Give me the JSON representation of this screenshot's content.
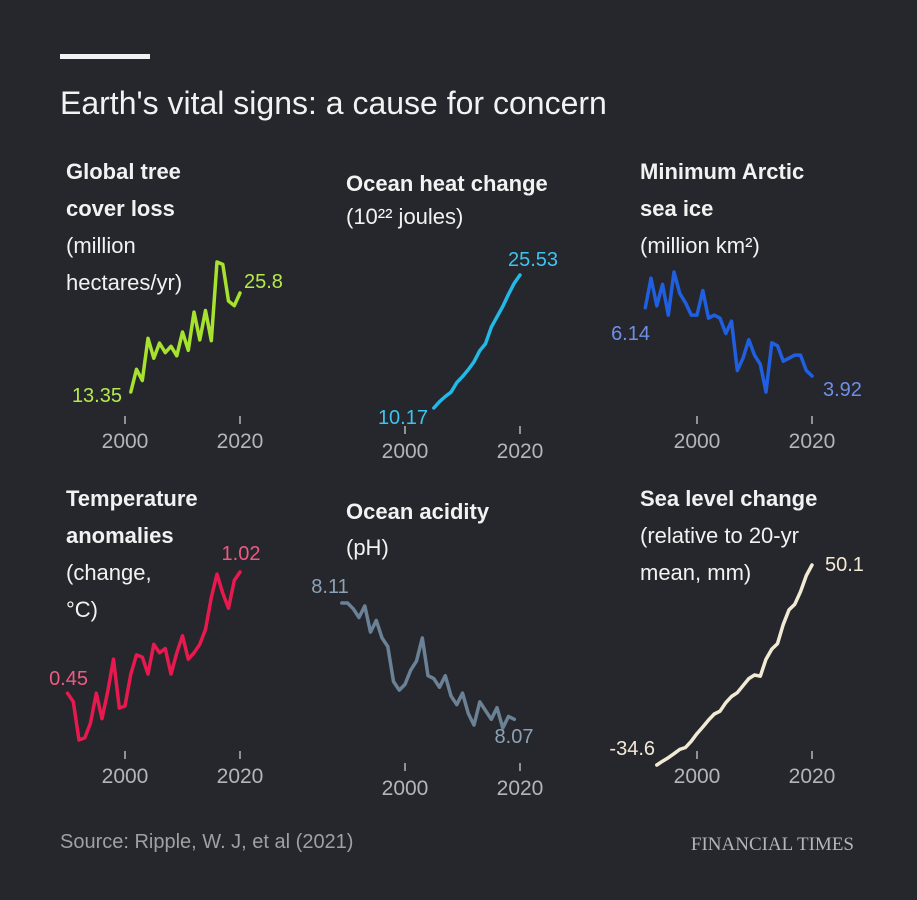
{
  "title": "Earth's vital signs: a cause for concern",
  "source": "Source: Ripple, W. J, et al (2021)",
  "publisher": "FINANCIAL TIMES",
  "chart_data": [
    {
      "type": "line",
      "title": [
        "Global tree",
        "cover loss"
      ],
      "subtitle": [
        "(million",
        "hectares/yr)"
      ],
      "color": "#a6e22e",
      "x": [
        2001,
        2002,
        2003,
        2004,
        2005,
        2006,
        2007,
        2008,
        2009,
        2010,
        2011,
        2012,
        2013,
        2014,
        2015,
        2016,
        2017,
        2018,
        2019,
        2020
      ],
      "values": [
        13.35,
        16.2,
        14.8,
        20.1,
        17.6,
        19.5,
        18.3,
        19.1,
        17.9,
        20.9,
        18.6,
        23.4,
        19.9,
        23.6,
        19.8,
        29.7,
        29.4,
        24.8,
        24.2,
        25.8
      ],
      "xlim": [
        1990,
        2025
      ],
      "xticks": [
        2000,
        2020
      ]
    },
    {
      "type": "line",
      "title": [
        "Ocean heat change"
      ],
      "subtitle": [
        "(10²² joules)"
      ],
      "color": "#22b8e8",
      "x": [
        2005,
        2006,
        2007,
        2008,
        2009,
        2010,
        2011,
        2012,
        2013,
        2014,
        2015,
        2016,
        2017,
        2018,
        2019,
        2020
      ],
      "values": [
        10.17,
        10.9,
        11.5,
        12.0,
        13.1,
        13.8,
        14.6,
        15.5,
        16.8,
        17.6,
        19.5,
        20.7,
        21.9,
        23.3,
        24.6,
        25.53
      ],
      "xlim": [
        1990,
        2025
      ],
      "xticks": [
        2000,
        2020
      ]
    },
    {
      "type": "line",
      "title": [
        "Minimum Arctic",
        "sea ice"
      ],
      "subtitle": [
        "(million km²)"
      ],
      "color": "#1f5fe0",
      "x": [
        1991,
        1992,
        1993,
        1994,
        1995,
        1996,
        1997,
        1998,
        1999,
        2000,
        2001,
        2002,
        2003,
        2004,
        2005,
        2006,
        2007,
        2008,
        2009,
        2010,
        2011,
        2012,
        2013,
        2014,
        2015,
        2016,
        2017,
        2018,
        2019,
        2020
      ],
      "values": [
        6.14,
        7.1,
        6.2,
        6.9,
        5.9,
        7.3,
        6.6,
        6.3,
        5.9,
        5.9,
        6.7,
        5.8,
        5.9,
        5.8,
        5.3,
        5.7,
        4.1,
        4.5,
        5.1,
        4.6,
        4.3,
        3.4,
        5.0,
        4.9,
        4.4,
        4.5,
        4.6,
        4.6,
        4.1,
        3.92
      ],
      "xlim": [
        1990,
        2025
      ],
      "xticks": [
        2000,
        2020
      ]
    },
    {
      "type": "line",
      "title": [
        "Temperature",
        "anomalies"
      ],
      "subtitle": [
        "(change,",
        "°C)"
      ],
      "color": "#e8194f",
      "x": [
        1990,
        1991,
        1992,
        1993,
        1994,
        1995,
        1996,
        1997,
        1998,
        1999,
        2000,
        2001,
        2002,
        2003,
        2004,
        2005,
        2006,
        2007,
        2008,
        2009,
        2010,
        2011,
        2012,
        2013,
        2014,
        2015,
        2016,
        2017,
        2018,
        2019,
        2020
      ],
      "values": [
        0.45,
        0.41,
        0.23,
        0.24,
        0.31,
        0.45,
        0.33,
        0.46,
        0.61,
        0.38,
        0.39,
        0.54,
        0.63,
        0.62,
        0.54,
        0.68,
        0.64,
        0.66,
        0.54,
        0.64,
        0.72,
        0.61,
        0.64,
        0.68,
        0.75,
        0.9,
        1.01,
        0.92,
        0.85,
        0.98,
        1.02
      ],
      "xlim": [
        1990,
        2025
      ],
      "xticks": [
        2000,
        2020
      ]
    },
    {
      "type": "line",
      "title": [
        "Ocean acidity"
      ],
      "subtitle": [
        "(pH)"
      ],
      "color": "#6b8196",
      "x": [
        1989,
        1990,
        1991,
        1992,
        1993,
        1994,
        1995,
        1996,
        1997,
        1998,
        1999,
        2000,
        2001,
        2002,
        2003,
        2004,
        2005,
        2006,
        2007,
        2008,
        2009,
        2010,
        2011,
        2012,
        2013,
        2014,
        2015,
        2016,
        2017,
        2018,
        2019
      ],
      "values": [
        8.11,
        8.11,
        8.108,
        8.105,
        8.109,
        8.1,
        8.104,
        8.098,
        8.095,
        8.083,
        8.08,
        8.082,
        8.087,
        8.09,
        8.098,
        8.085,
        8.084,
        8.081,
        8.085,
        8.078,
        8.075,
        8.079,
        8.072,
        8.068,
        8.076,
        8.073,
        8.07,
        8.074,
        8.067,
        8.071,
        8.07
      ],
      "xlim": [
        1990,
        2025
      ],
      "xticks": [
        2000,
        2020
      ]
    },
    {
      "type": "line",
      "title": [
        "Sea level change"
      ],
      "subtitle": [
        "(relative to 20-yr",
        "mean, mm)"
      ],
      "color": "#f3ead6",
      "x": [
        1993,
        1994,
        1995,
        1996,
        1997,
        1998,
        1999,
        2000,
        2001,
        2002,
        2003,
        2004,
        2005,
        2006,
        2007,
        2008,
        2009,
        2010,
        2011,
        2012,
        2013,
        2014,
        2015,
        2016,
        2017,
        2018,
        2019,
        2020
      ],
      "values": [
        -34.6,
        -33.0,
        -31.5,
        -29.8,
        -28.0,
        -27.2,
        -24.5,
        -21.3,
        -18.5,
        -15.6,
        -13.0,
        -11.8,
        -8.2,
        -5.6,
        -4.0,
        -1.0,
        2.0,
        3.5,
        3.0,
        10.2,
        14.5,
        16.8,
        25.0,
        31.1,
        33.5,
        38.8,
        45.6,
        50.1
      ],
      "xlim": [
        1990,
        2025
      ],
      "xticks": [
        2000,
        2020
      ]
    }
  ]
}
